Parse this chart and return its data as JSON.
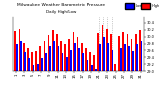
{
  "title": "Milwaukee Weather Barometric Pressure",
  "subtitle": "Daily High/Low",
  "background_color": "#ffffff",
  "bar_color_high": "#ff0000",
  "bar_color_low": "#0000ff",
  "legend_high": "High",
  "legend_low": "Low",
  "ylim": [
    29.0,
    30.55
  ],
  "yticks": [
    29.0,
    29.2,
    29.4,
    29.6,
    29.8,
    30.0,
    30.2,
    30.4
  ],
  "ytick_labels": [
    "29.0",
    "29.2",
    "29.4",
    "29.6",
    "29.8",
    "30.0",
    "30.2",
    "30.4"
  ],
  "days": [
    1,
    2,
    3,
    4,
    5,
    6,
    7,
    8,
    9,
    10,
    11,
    12,
    13,
    14,
    15,
    16,
    17,
    18,
    19,
    20,
    21,
    22,
    23,
    24,
    25,
    26,
    27,
    28,
    29,
    30,
    31
  ],
  "highs": [
    30.15,
    30.22,
    29.82,
    29.68,
    29.55,
    29.58,
    29.72,
    29.88,
    30.05,
    30.2,
    30.08,
    29.88,
    29.78,
    29.92,
    30.12,
    29.98,
    29.82,
    29.68,
    29.55,
    29.48,
    30.1,
    30.32,
    30.22,
    30.08,
    29.22,
    30.02,
    30.12,
    30.08,
    29.92,
    30.08,
    30.18
  ],
  "lows": [
    29.78,
    29.88,
    29.55,
    29.38,
    29.18,
    29.22,
    29.38,
    29.52,
    29.72,
    29.88,
    29.72,
    29.52,
    29.42,
    29.62,
    29.82,
    29.68,
    29.52,
    29.32,
    29.18,
    29.08,
    29.78,
    29.98,
    29.82,
    29.62,
    28.98,
    29.68,
    29.78,
    29.72,
    29.58,
    29.78,
    29.88
  ],
  "dotted_lines": [
    21,
    22,
    23,
    24
  ],
  "xtick_step": 2
}
